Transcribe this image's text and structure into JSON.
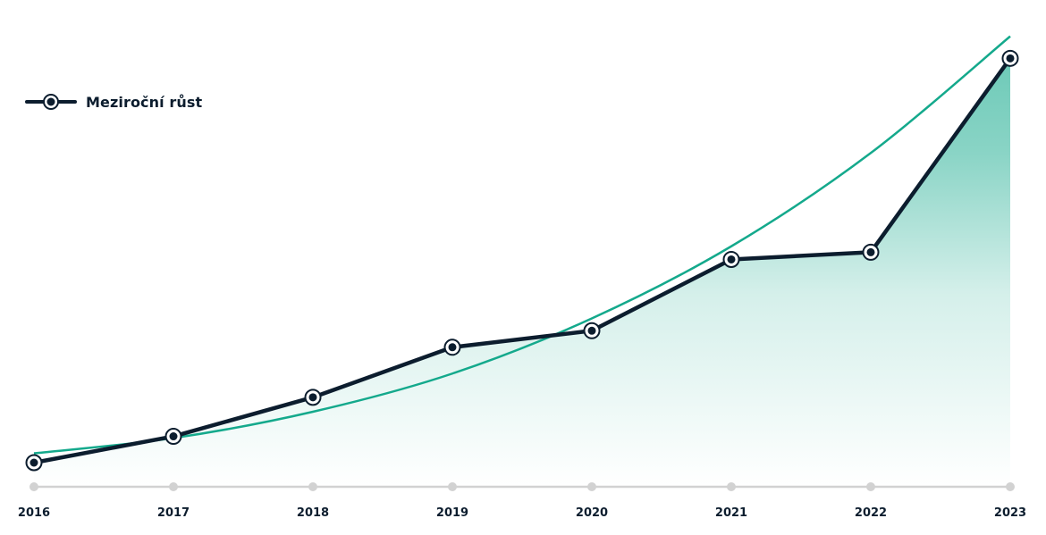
{
  "chart_data": {
    "type": "line",
    "categories": [
      "2016",
      "2017",
      "2018",
      "2019",
      "2020",
      "2021",
      "2022",
      "2023"
    ],
    "series": [
      {
        "name": "Meziroční růst",
        "values": [
          0,
          6.2,
          15.4,
          27.2,
          31.1,
          47.9,
          49.6,
          95.3
        ],
        "color": "#0c1d2e"
      }
    ],
    "trendline": {
      "type": "exponential",
      "color": "#14a98c",
      "values": [
        2.2,
        5.8,
        12.0,
        21.0,
        34.0,
        51.0,
        73.0,
        100.5
      ]
    },
    "area_fill_color": "#14a98c",
    "axis_color": "#d2d2d2",
    "ylim": [
      0,
      100
    ],
    "grid": false,
    "legend_position": "top-left",
    "xlabel": "",
    "ylabel": ""
  }
}
